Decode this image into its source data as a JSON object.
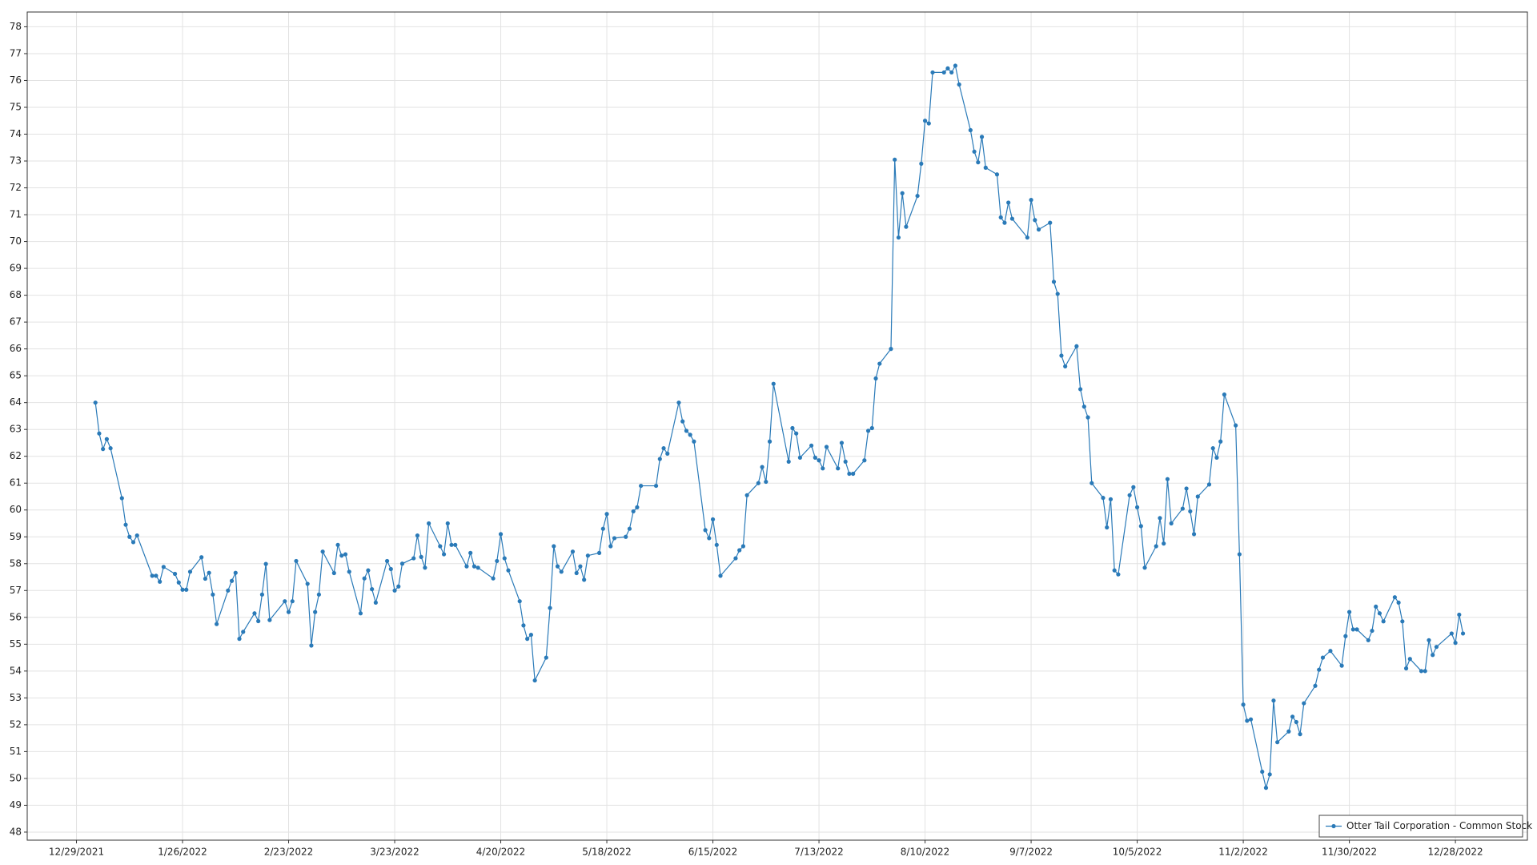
{
  "chart_data": {
    "type": "line",
    "x": [
      "1/3/2022",
      "1/4/2022",
      "1/5/2022",
      "1/6/2022",
      "1/7/2022",
      "1/10/2022",
      "1/11/2022",
      "1/12/2022",
      "1/13/2022",
      "1/14/2022",
      "1/18/2022",
      "1/19/2022",
      "1/20/2022",
      "1/21/2022",
      "1/24/2022",
      "1/25/2022",
      "1/26/2022",
      "1/27/2022",
      "1/28/2022",
      "1/31/2022",
      "2/1/2022",
      "2/2/2022",
      "2/3/2022",
      "2/4/2022",
      "2/7/2022",
      "2/8/2022",
      "2/9/2022",
      "2/10/2022",
      "2/11/2022",
      "2/14/2022",
      "2/15/2022",
      "2/16/2022",
      "2/17/2022",
      "2/18/2022",
      "2/22/2022",
      "2/23/2022",
      "2/24/2022",
      "2/25/2022",
      "2/28/2022",
      "3/1/2022",
      "3/2/2022",
      "3/3/2022",
      "3/4/2022",
      "3/7/2022",
      "3/8/2022",
      "3/9/2022",
      "3/10/2022",
      "3/11/2022",
      "3/14/2022",
      "3/15/2022",
      "3/16/2022",
      "3/17/2022",
      "3/18/2022",
      "3/21/2022",
      "3/22/2022",
      "3/23/2022",
      "3/24/2022",
      "3/25/2022",
      "3/28/2022",
      "3/29/2022",
      "3/30/2022",
      "3/31/2022",
      "4/1/2022",
      "4/4/2022",
      "4/5/2022",
      "4/6/2022",
      "4/7/2022",
      "4/8/2022",
      "4/11/2022",
      "4/12/2022",
      "4/13/2022",
      "4/14/2022",
      "4/18/2022",
      "4/19/2022",
      "4/20/2022",
      "4/21/2022",
      "4/22/2022",
      "4/25/2022",
      "4/26/2022",
      "4/27/2022",
      "4/28/2022",
      "4/29/2022",
      "5/2/2022",
      "5/3/2022",
      "5/4/2022",
      "5/5/2022",
      "5/6/2022",
      "5/9/2022",
      "5/10/2022",
      "5/11/2022",
      "5/12/2022",
      "5/13/2022",
      "5/16/2022",
      "5/17/2022",
      "5/18/2022",
      "5/19/2022",
      "5/20/2022",
      "5/23/2022",
      "5/24/2022",
      "5/25/2022",
      "5/26/2022",
      "5/27/2022",
      "5/31/2022",
      "6/1/2022",
      "6/2/2022",
      "6/3/2022",
      "6/6/2022",
      "6/7/2022",
      "6/8/2022",
      "6/9/2022",
      "6/10/2022",
      "6/13/2022",
      "6/14/2022",
      "6/15/2022",
      "6/16/2022",
      "6/17/2022",
      "6/21/2022",
      "6/22/2022",
      "6/23/2022",
      "6/24/2022",
      "6/27/2022",
      "6/28/2022",
      "6/29/2022",
      "6/30/2022",
      "7/1/2022",
      "7/5/2022",
      "7/6/2022",
      "7/7/2022",
      "7/8/2022",
      "7/11/2022",
      "7/12/2022",
      "7/13/2022",
      "7/14/2022",
      "7/15/2022",
      "7/18/2022",
      "7/19/2022",
      "7/20/2022",
      "7/21/2022",
      "7/22/2022",
      "7/25/2022",
      "7/26/2022",
      "7/27/2022",
      "7/28/2022",
      "7/29/2022",
      "8/1/2022",
      "8/2/2022",
      "8/3/2022",
      "8/4/2022",
      "8/5/2022",
      "8/8/2022",
      "8/9/2022",
      "8/10/2022",
      "8/11/2022",
      "8/12/2022",
      "8/15/2022",
      "8/16/2022",
      "8/17/2022",
      "8/18/2022",
      "8/19/2022",
      "8/22/2022",
      "8/23/2022",
      "8/24/2022",
      "8/25/2022",
      "8/26/2022",
      "8/29/2022",
      "8/30/2022",
      "8/31/2022",
      "9/1/2022",
      "9/2/2022",
      "9/6/2022",
      "9/7/2022",
      "9/8/2022",
      "9/9/2022",
      "9/12/2022",
      "9/13/2022",
      "9/14/2022",
      "9/15/2022",
      "9/16/2022",
      "9/19/2022",
      "9/20/2022",
      "9/21/2022",
      "9/22/2022",
      "9/23/2022",
      "9/26/2022",
      "9/27/2022",
      "9/28/2022",
      "9/29/2022",
      "9/30/2022",
      "10/3/2022",
      "10/4/2022",
      "10/5/2022",
      "10/6/2022",
      "10/7/2022",
      "10/10/2022",
      "10/11/2022",
      "10/12/2022",
      "10/13/2022",
      "10/14/2022",
      "10/17/2022",
      "10/18/2022",
      "10/19/2022",
      "10/20/2022",
      "10/21/2022",
      "10/24/2022",
      "10/25/2022",
      "10/26/2022",
      "10/27/2022",
      "10/28/2022",
      "10/31/2022",
      "11/1/2022",
      "11/2/2022",
      "11/3/2022",
      "11/4/2022",
      "11/7/2022",
      "11/8/2022",
      "11/9/2022",
      "11/10/2022",
      "11/11/2022",
      "11/14/2022",
      "11/15/2022",
      "11/16/2022",
      "11/17/2022",
      "11/18/2022",
      "11/21/2022",
      "11/22/2022",
      "11/23/2022",
      "11/25/2022",
      "11/28/2022",
      "11/29/2022",
      "11/30/2022",
      "12/1/2022",
      "12/2/2022",
      "12/5/2022",
      "12/6/2022",
      "12/7/2022",
      "12/8/2022",
      "12/9/2022",
      "12/12/2022",
      "12/13/2022",
      "12/14/2022",
      "12/15/2022",
      "12/16/2022",
      "12/19/2022",
      "12/20/2022",
      "12/21/2022",
      "12/22/2022",
      "12/23/2022",
      "12/27/2022",
      "12/28/2022",
      "12/29/2022",
      "12/30/2022"
    ],
    "series": [
      {
        "name": "Otter Tail Corporation - Common Stock",
        "color": "#2a7ab8",
        "values": [
          64.0,
          62.85,
          62.27,
          62.64,
          62.3,
          60.44,
          59.45,
          59.0,
          58.8,
          59.05,
          57.55,
          57.55,
          57.33,
          57.88,
          57.62,
          57.3,
          57.03,
          57.03,
          57.7,
          58.24,
          57.44,
          57.66,
          56.85,
          55.75,
          57.0,
          57.36,
          57.66,
          55.2,
          55.46,
          56.15,
          55.86,
          56.85,
          57.99,
          55.9,
          56.6,
          56.2,
          56.6,
          58.1,
          57.25,
          54.95,
          56.2,
          56.85,
          58.45,
          57.65,
          58.7,
          58.3,
          58.35,
          57.7,
          56.15,
          57.45,
          57.75,
          57.05,
          56.55,
          58.1,
          57.8,
          57.0,
          57.15,
          58.0,
          58.2,
          59.05,
          58.25,
          57.85,
          59.5,
          58.65,
          58.35,
          59.5,
          58.7,
          58.7,
          57.9,
          58.4,
          57.9,
          57.85,
          57.45,
          58.1,
          59.1,
          58.2,
          57.75,
          56.6,
          55.7,
          55.2,
          55.35,
          53.65,
          54.5,
          56.35,
          58.65,
          57.9,
          57.7,
          58.45,
          57.65,
          57.9,
          57.4,
          58.3,
          58.4,
          59.3,
          59.85,
          58.65,
          58.95,
          59.0,
          59.3,
          59.95,
          60.1,
          60.9,
          60.9,
          61.9,
          62.3,
          62.1,
          64.0,
          63.3,
          62.95,
          62.8,
          62.55,
          59.25,
          58.95,
          59.65,
          58.7,
          57.55,
          58.2,
          58.5,
          58.65,
          60.55,
          61.0,
          61.6,
          61.05,
          62.55,
          64.7,
          61.8,
          63.05,
          62.85,
          61.95,
          62.4,
          61.95,
          61.85,
          61.55,
          62.35,
          61.55,
          62.5,
          61.8,
          61.35,
          61.35,
          61.85,
          62.95,
          63.05,
          64.9,
          65.45,
          66.0,
          73.05,
          70.15,
          71.8,
          70.55,
          71.7,
          72.9,
          74.5,
          74.4,
          76.3,
          76.3,
          76.45,
          76.3,
          76.55,
          75.85,
          74.15,
          73.35,
          72.95,
          73.9,
          72.75,
          72.5,
          70.9,
          70.7,
          71.45,
          70.85,
          70.15,
          71.55,
          70.8,
          70.45,
          70.7,
          68.5,
          68.05,
          65.75,
          65.35,
          66.1,
          64.5,
          63.85,
          63.45,
          61.0,
          60.45,
          59.35,
          60.4,
          57.75,
          57.6,
          60.55,
          60.85,
          60.1,
          59.4,
          57.85,
          58.65,
          59.7,
          58.75,
          61.15,
          59.5,
          60.05,
          60.8,
          59.95,
          59.1,
          60.5,
          60.95,
          62.3,
          61.95,
          62.55,
          64.3,
          63.15,
          58.35,
          52.75,
          52.15,
          52.2,
          50.25,
          49.65,
          50.15,
          52.9,
          51.35,
          51.75,
          52.3,
          52.1,
          51.65,
          52.8,
          53.45,
          54.05,
          54.5,
          54.75,
          54.2,
          55.3,
          56.2,
          55.55,
          55.55,
          55.15,
          55.5,
          56.4,
          56.15,
          55.85,
          56.75,
          56.55,
          55.85,
          54.1,
          54.45,
          54.0,
          54.0,
          55.15,
          54.6,
          54.9,
          55.4,
          55.05,
          56.1,
          55.4
        ]
      }
    ],
    "xlim": [
      "12/16/2021",
      "1/16/2023"
    ],
    "xticks": [
      "12/29/2021",
      "1/26/2022",
      "2/23/2022",
      "3/23/2022",
      "4/20/2022",
      "5/18/2022",
      "6/15/2022",
      "7/13/2022",
      "8/10/2022",
      "9/7/2022",
      "10/5/2022",
      "11/2/2022",
      "11/30/2022",
      "12/28/2022"
    ],
    "ylim": [
      47.7,
      78.55
    ],
    "yticks": [
      48,
      49,
      50,
      51,
      52,
      53,
      54,
      55,
      56,
      57,
      58,
      59,
      60,
      61,
      62,
      63,
      64,
      65,
      66,
      67,
      68,
      69,
      70,
      71,
      72,
      73,
      74,
      75,
      76,
      77,
      78
    ],
    "grid": true,
    "markers": true,
    "legend": "bottom-right"
  }
}
